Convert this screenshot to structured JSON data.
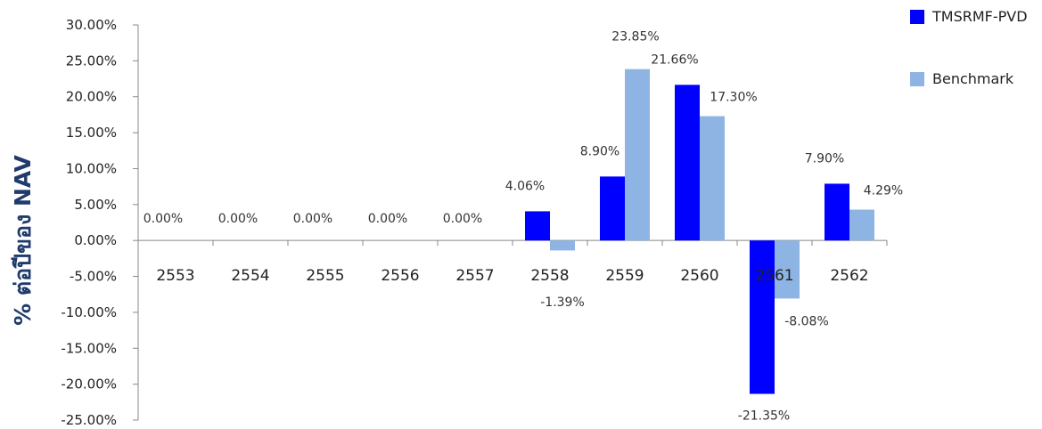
{
  "chart_data": {
    "type": "bar",
    "title": "",
    "xlabel": "",
    "ylabel": "% ต่อปีของ NAV",
    "ylim": [
      -25,
      30
    ],
    "ytick_step": 5,
    "ytick_labels": [
      "30.00%",
      "25.00%",
      "20.00%",
      "15.00%",
      "10.00%",
      "5.00%",
      "0.00%",
      "-5.00%",
      "-10.00%",
      "-15.00%",
      "-20.00%",
      "-25.00%"
    ],
    "categories": [
      "2553",
      "2554",
      "2555",
      "2556",
      "2557",
      "2558",
      "2559",
      "2560",
      "2561",
      "2562"
    ],
    "legend_position": "top-right",
    "grid": false,
    "series": [
      {
        "name": "TMSRMF-PVD",
        "color": "#0000ff",
        "values": [
          0,
          0,
          0,
          0,
          0,
          4.06,
          8.9,
          21.66,
          -21.35,
          7.9
        ],
        "labels": [
          "0.00%",
          "0.00%",
          "0.00%",
          "0.00%",
          "0.00%",
          "4.06%",
          "8.90%",
          "21.66%",
          "-21.35%",
          "7.90%"
        ]
      },
      {
        "name": "Benchmark",
        "color": "#8eb4e3",
        "values": [
          null,
          null,
          null,
          null,
          null,
          -1.39,
          23.85,
          17.3,
          -8.08,
          4.29
        ],
        "labels": [
          "",
          "",
          "",
          "",
          "",
          "-1.39%",
          "23.85%",
          "17.30%",
          "-8.08%",
          "4.29%"
        ]
      }
    ]
  }
}
